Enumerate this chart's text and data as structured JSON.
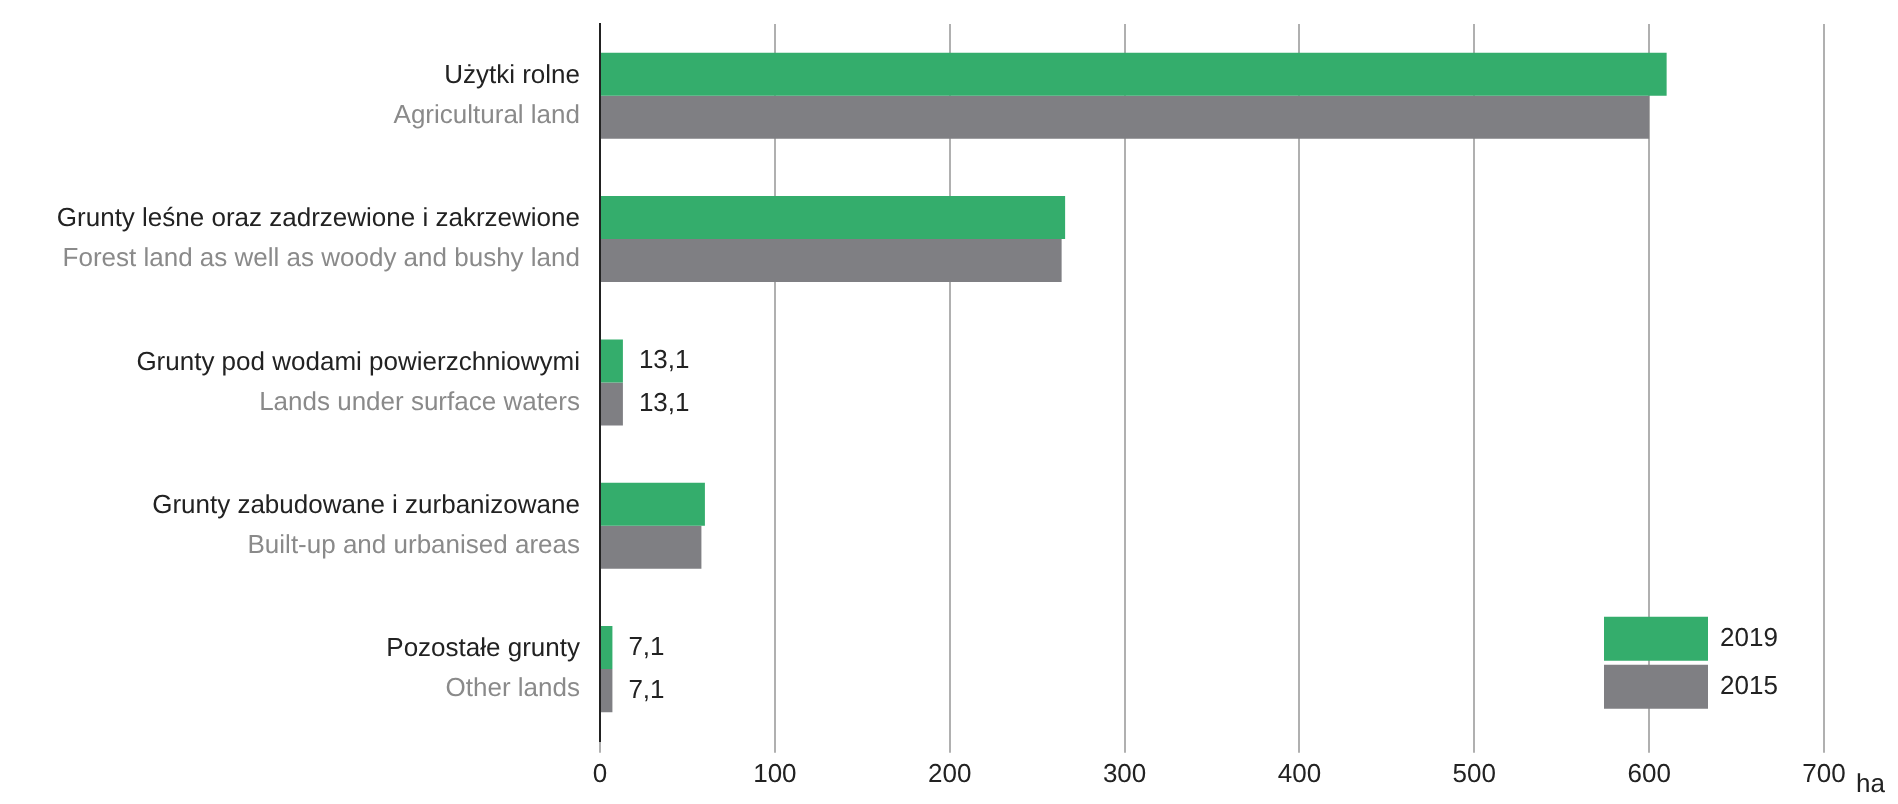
{
  "chart_data": {
    "type": "bar",
    "orientation": "horizontal",
    "xlabel": "ha",
    "categories": [
      "Użytki rolne\nAgricultural land",
      "Grunty leśne oraz zadrzewione i zakrzewione\nForest land as well as woody and bushy land",
      "Grunty pod wodami powierzchniowymi\nLands under surface waters",
      "Grunty zabudowane i zurbanizowane\nBuilt-up and urbanised areas",
      "Pozostałe grunty\nOther lands"
    ],
    "series": [
      {
        "name": "2019",
        "color": "#34ad6c",
        "values": [
          610,
          266,
          13.1,
          60,
          7.1
        ],
        "value_labels": [
          null,
          null,
          "13,1",
          null,
          "7,1"
        ]
      },
      {
        "name": "2015",
        "color": "#7f7f83",
        "values": [
          600,
          264,
          13.1,
          58,
          7.1
        ],
        "value_labels": [
          null,
          null,
          "13,1",
          null,
          "7,1"
        ]
      }
    ],
    "xlim": [
      0,
      700
    ],
    "xticks": [
      0,
      100,
      200,
      300,
      400,
      500,
      600,
      700
    ],
    "grid": "x",
    "legend": "bottom right"
  }
}
